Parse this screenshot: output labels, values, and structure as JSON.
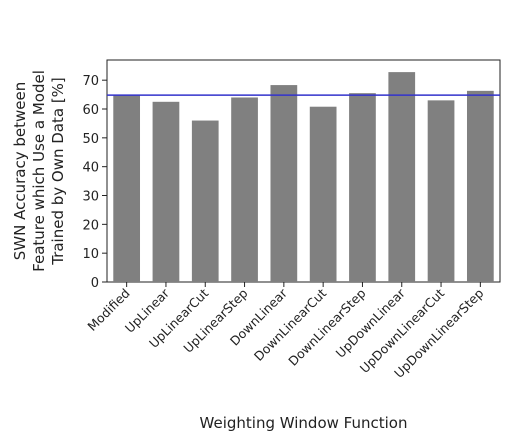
{
  "chart_data": {
    "type": "bar",
    "categories": [
      "Modified",
      "UpLinear",
      "UpLinearCut",
      "UpLinearStep",
      "DownLinear",
      "DownLinearCut",
      "DownLinearStep",
      "UpDownLinear",
      "UpDownLinearCut",
      "UpDownLinearStep"
    ],
    "series": [
      {
        "values": [
          65,
          62.5,
          56,
          64,
          68.3,
          60.8,
          65.5,
          72.8,
          63,
          66.3
        ],
        "color": "#808080"
      }
    ],
    "reference_line": {
      "value": 64.8,
      "color": "#3333cc"
    },
    "xlabel": "Weighting Window Function",
    "ylabel_lines": [
      "SWN Accuracy between",
      "Feature which Use a Model",
      "Trained by Own Data [%]"
    ],
    "yticks": [
      0,
      10,
      20,
      30,
      40,
      50,
      60,
      70
    ],
    "ylim": [
      0,
      77
    ],
    "grid": false
  }
}
